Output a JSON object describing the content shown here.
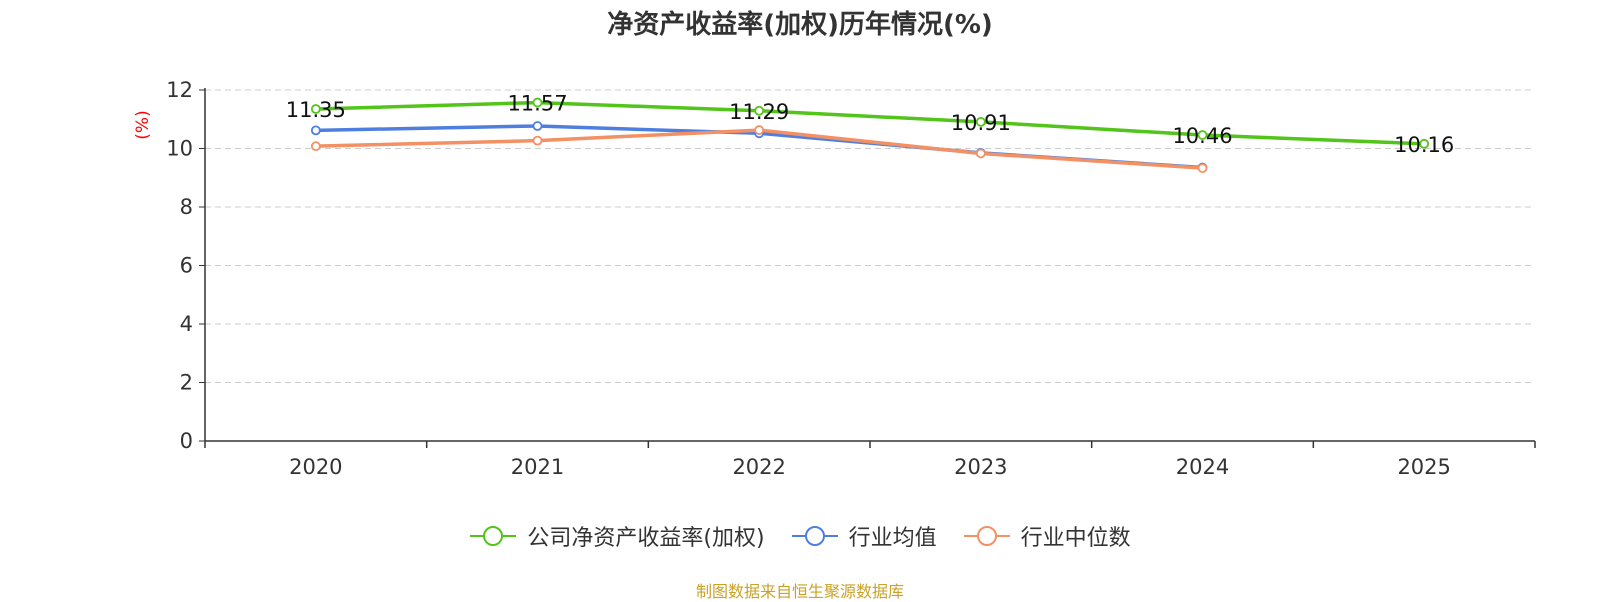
{
  "chart_data": {
    "type": "line",
    "title": "净资产收益率(加权)历年情况(%)",
    "ylabel": "(%)",
    "categories": [
      "2020",
      "2021",
      "2022",
      "2023",
      "2024",
      "2025"
    ],
    "ylim": [
      0,
      12
    ],
    "yticks": [
      0,
      2,
      4,
      6,
      8,
      10,
      12
    ],
    "grid": true,
    "legend_position": "bottom",
    "series": [
      {
        "name": "公司净资产收益率(加权)",
        "color": "#52c41a",
        "values": [
          11.35,
          11.57,
          11.29,
          10.91,
          10.46,
          10.16
        ],
        "labels": [
          "11.35",
          "11.57",
          "11.29",
          "10.91",
          "10.46",
          "10.16"
        ]
      },
      {
        "name": "行业均值",
        "color": "#4e7fe0",
        "values": [
          10.62,
          10.77,
          10.52,
          9.85,
          9.35,
          null
        ]
      },
      {
        "name": "行业中位数",
        "color": "#f39064",
        "values": [
          10.08,
          10.27,
          10.63,
          9.83,
          9.33,
          null
        ]
      }
    ]
  },
  "footer": {
    "source": "制图数据来自恒生聚源数据库",
    "source_color": "#c9a227"
  },
  "axis_color": "#ff0000"
}
